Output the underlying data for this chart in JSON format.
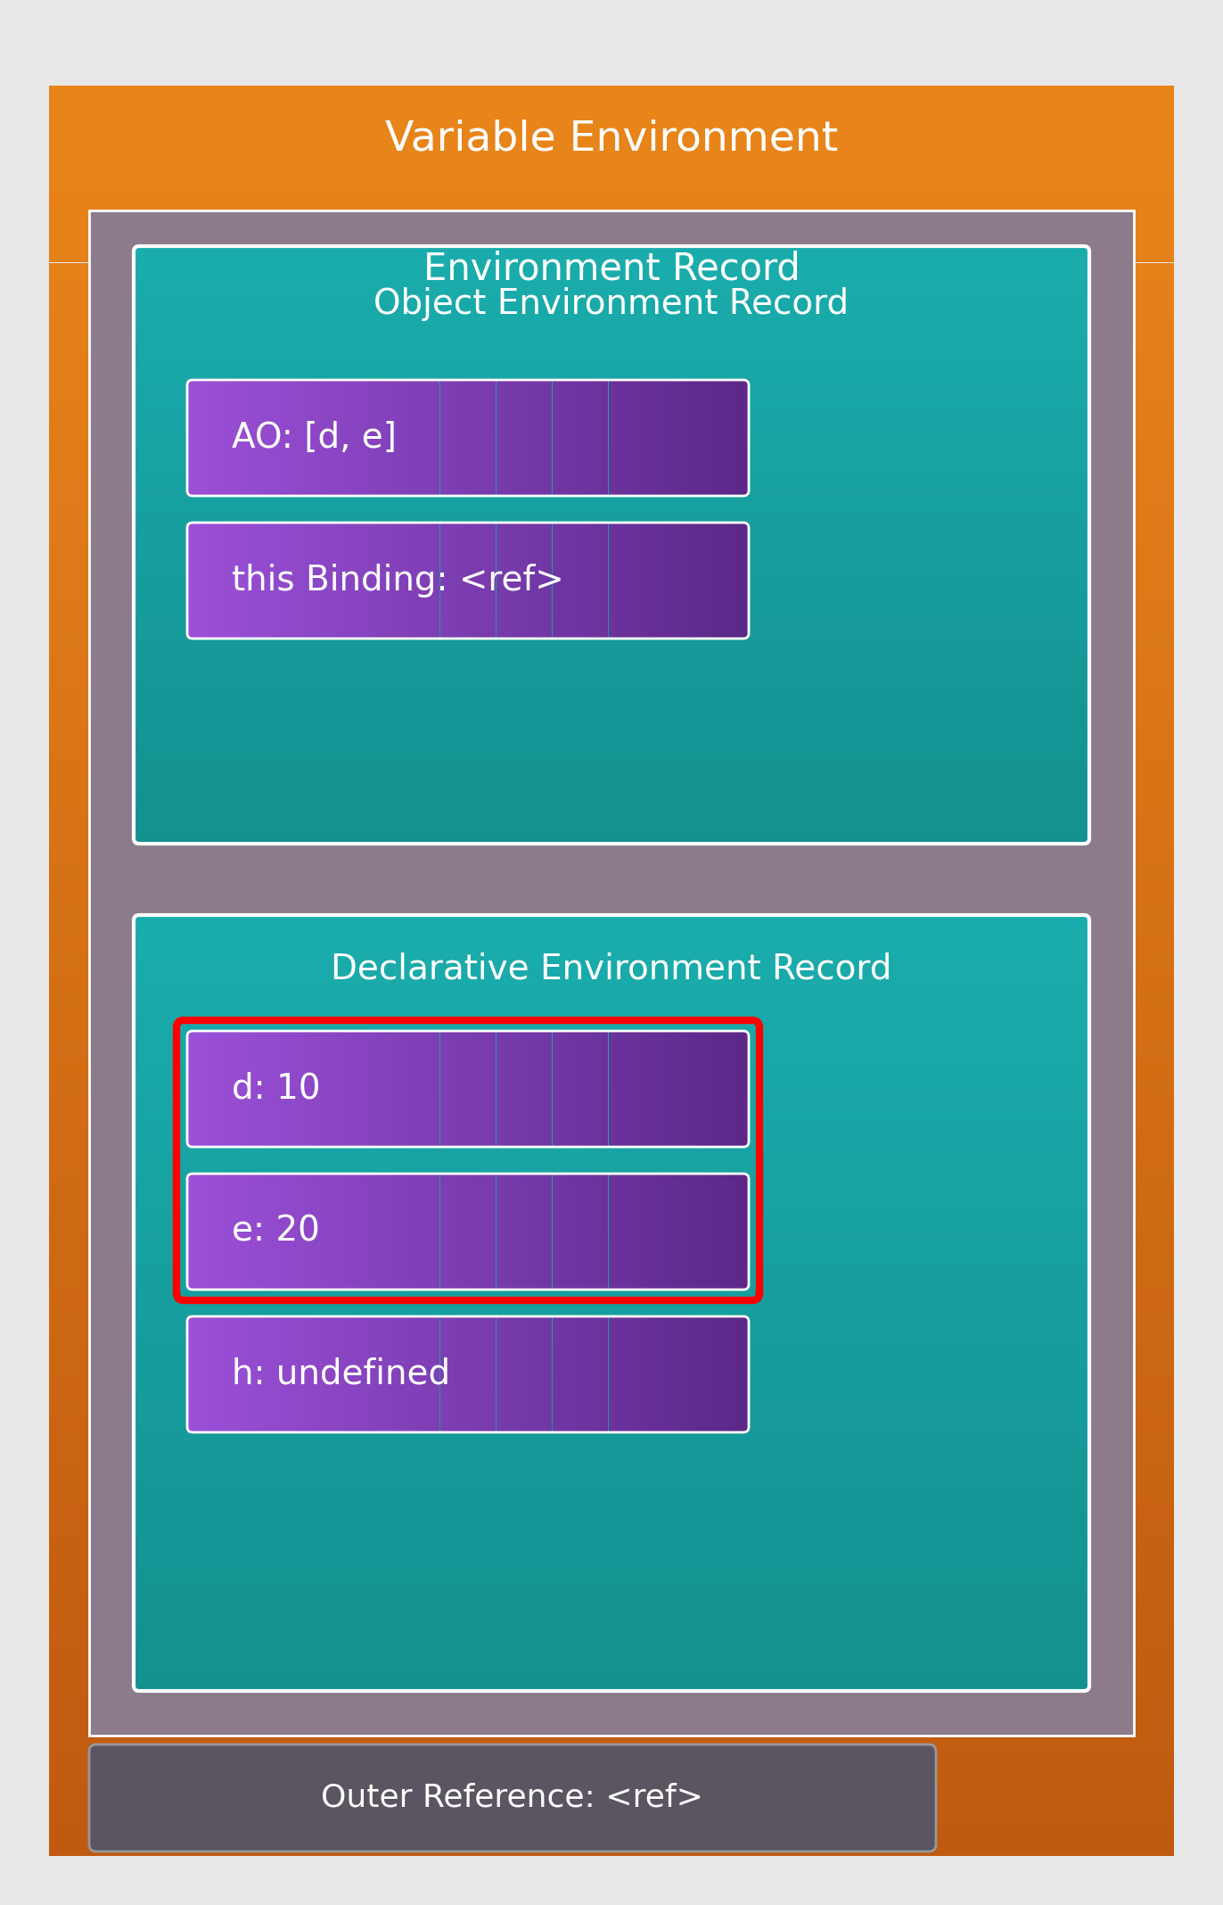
{
  "title": "Variable Environment",
  "env_record_label": "Environment Record",
  "decl_env_label": "Declarative Environment Record",
  "obj_env_label": "Object Environment Record",
  "outer_ref_label": "Outer Reference: <ref>",
  "decl_items": [
    "d: 10",
    "e: 20",
    "h: undefined"
  ],
  "obj_items": [
    "AO: [d, e]",
    "this Binding: <ref>"
  ],
  "bg_color": "#e8e8e8",
  "outer_box_color_top": "#E8851A",
  "outer_box_color_bottom": "#C05A10",
  "env_record_color": "#8B7B8B",
  "decl_env_color": "#1AACAC",
  "obj_env_color": "#1AACAC",
  "item_color_left": "#9B50D8",
  "item_color_right": "#5B2888",
  "highlight_border_color": "#FF0000",
  "text_color": "#FFFFFF",
  "outer_ref_bg": "#5A5560",
  "outer_ref_border": "#999999",
  "white_border": "#FFFFFF"
}
